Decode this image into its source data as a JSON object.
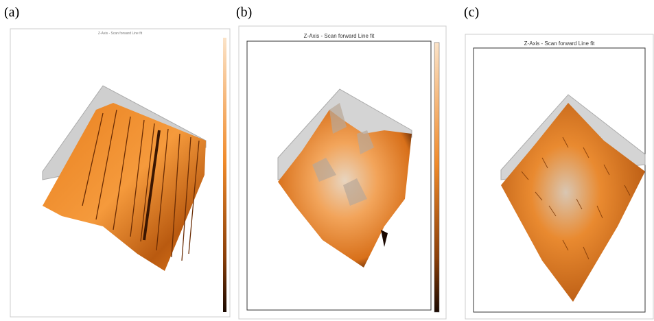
{
  "panels": [
    {
      "label": "(a)",
      "title": "Z-Axis - Scan forward  Line fit"
    },
    {
      "label": "(b)",
      "title": "Z-Axis - Scan forward  Line fit"
    },
    {
      "label": "(c)",
      "title": "Z-Axis - Scan forward  Line fit"
    }
  ]
}
